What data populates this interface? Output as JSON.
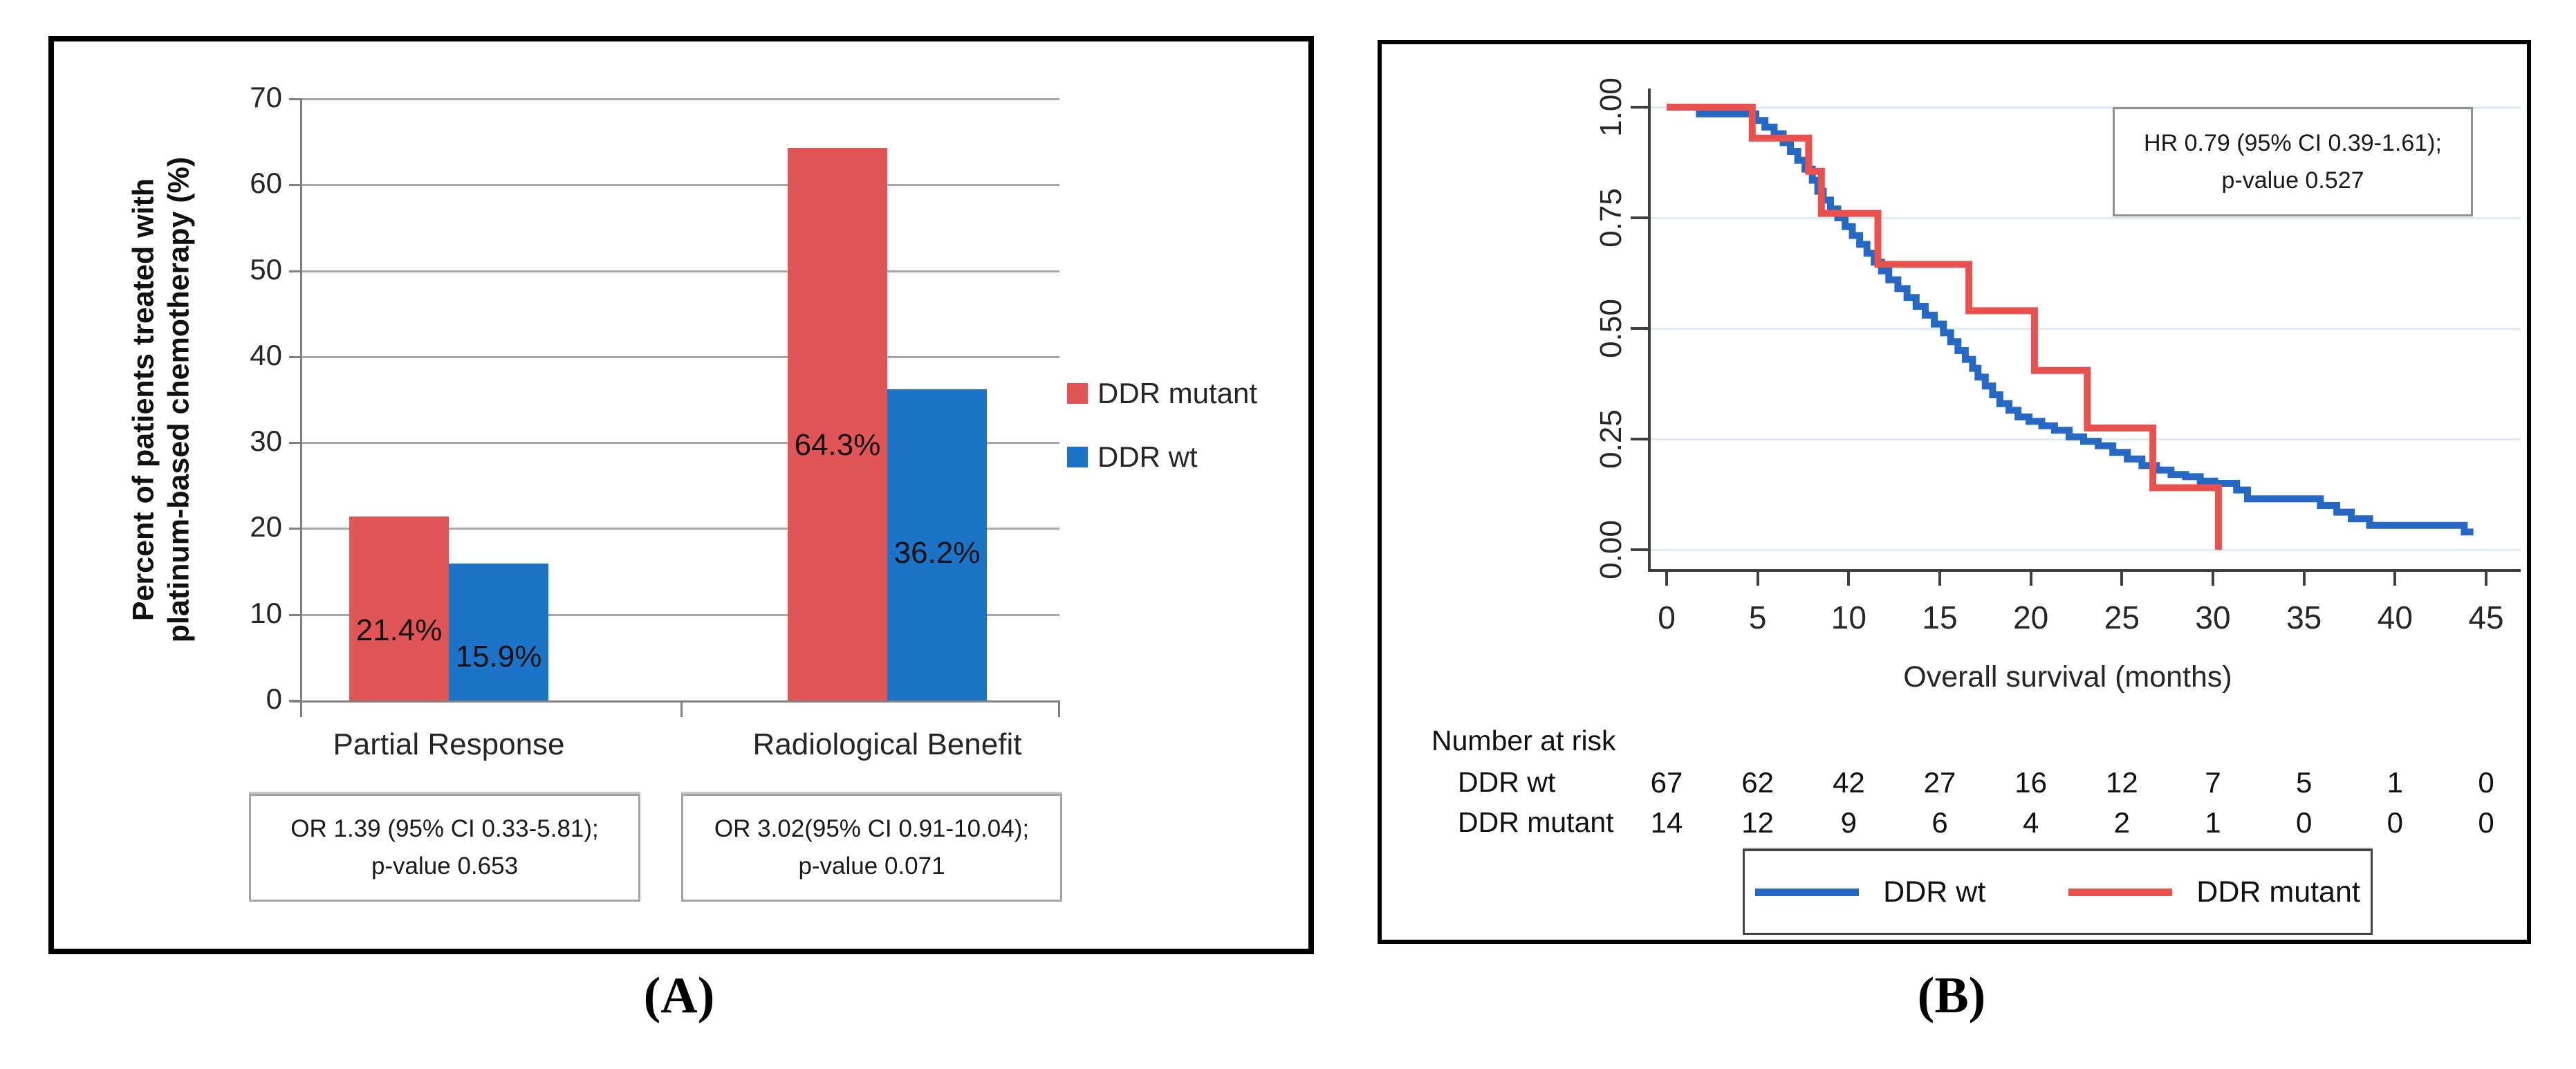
{
  "panel_a": {
    "caption": "(A)",
    "y_axis_title_line1": "Percent of patients treated with",
    "y_axis_title_line2": "platinum-based chemotherapy (%)",
    "y_ticks": [
      0,
      10,
      20,
      30,
      40,
      50,
      60,
      70
    ],
    "groups": [
      {
        "label": "Partial Response",
        "or_note_line1": "OR 1.39 (95% CI 0.33-5.81);",
        "or_note_line2": "p-value 0.653",
        "bars": [
          {
            "series": "DDR mutant",
            "value": 21.4,
            "label": "21.4%"
          },
          {
            "series": "DDR wt",
            "value": 15.9,
            "label": "15.9%"
          }
        ]
      },
      {
        "label": "Radiological Benefit",
        "or_note_line1": "OR 3.02(95% CI 0.91-10.04);",
        "or_note_line2": "p-value 0.071",
        "bars": [
          {
            "series": "DDR mutant",
            "value": 64.3,
            "label": "64.3%"
          },
          {
            "series": "DDR wt",
            "value": 36.2,
            "label": "36.2%"
          }
        ]
      }
    ],
    "legend": [
      {
        "label": "DDR mutant",
        "color": "#e25556"
      },
      {
        "label": "DDR wt",
        "color": "#1b74c8"
      }
    ]
  },
  "panel_b": {
    "caption": "(B)",
    "hr_note_line1": "HR 0.79 (95% CI 0.39-1.61);",
    "hr_note_line2": "p-value 0.527",
    "x_axis_title": "Overall survival (months)",
    "x_ticks": [
      0,
      5,
      10,
      15,
      20,
      25,
      30,
      35,
      40,
      45
    ],
    "y_ticks": [
      "1.00",
      "0.75",
      "0.50",
      "0.25",
      "0.00"
    ],
    "risk_table": {
      "title": "Number at risk",
      "rows": [
        {
          "label": "DDR wt",
          "counts": [
            67,
            62,
            42,
            27,
            16,
            12,
            7,
            5,
            1,
            0
          ]
        },
        {
          "label": "DDR mutant",
          "counts": [
            14,
            12,
            9,
            6,
            4,
            2,
            1,
            0,
            0,
            0
          ]
        }
      ]
    },
    "legend": [
      {
        "label": "DDR wt",
        "color": "#2569c5"
      },
      {
        "label": "DDR mutant",
        "color": "#e8514d"
      }
    ]
  },
  "chart_data": [
    {
      "type": "bar",
      "panel": "A",
      "title": "",
      "categories": [
        "Partial Response",
        "Radiological Benefit"
      ],
      "series": [
        {
          "name": "DDR mutant",
          "values": [
            21.4,
            64.3
          ],
          "color": "#e25556"
        },
        {
          "name": "DDR wt",
          "values": [
            15.9,
            36.2
          ],
          "color": "#1b74c8"
        }
      ],
      "xlabel": "",
      "ylabel": "Percent of patients treated with platinum-based chemotherapy (%)",
      "ylim": [
        0,
        70
      ],
      "grid": true,
      "legend_position": "right",
      "annotations": [
        "OR 1.39 (95% CI 0.33-5.81); p-value 0.653",
        "OR 3.02(95% CI 0.91-10.04); p-value 0.071"
      ]
    },
    {
      "type": "line",
      "panel": "B",
      "subtype": "kaplan-meier-step",
      "xlabel": "Overall survival (months)",
      "ylabel": "",
      "xlim": [
        0,
        45
      ],
      "ylim": [
        0.0,
        1.0
      ],
      "x_ticks": [
        0,
        5,
        10,
        15,
        20,
        25,
        30,
        35,
        40,
        45
      ],
      "y_ticks": [
        1.0,
        0.75,
        0.5,
        0.25,
        0.0
      ],
      "grid": true,
      "annotation": "HR 0.79 (95% CI 0.39-1.61); p-value 0.527",
      "series": [
        {
          "name": "DDR wt",
          "color": "#2569c5",
          "end_time": 44.3,
          "steps": [
            [
              0,
              1.0
            ],
            [
              1.8,
              0.985
            ],
            [
              4.9,
              0.97
            ],
            [
              5.4,
              0.955
            ],
            [
              5.9,
              0.94
            ],
            [
              6.4,
              0.92
            ],
            [
              6.8,
              0.9
            ],
            [
              7.2,
              0.88
            ],
            [
              7.6,
              0.86
            ],
            [
              8.0,
              0.835
            ],
            [
              8.3,
              0.81
            ],
            [
              8.6,
              0.79
            ],
            [
              9.0,
              0.77
            ],
            [
              9.4,
              0.75
            ],
            [
              9.8,
              0.73
            ],
            [
              10.2,
              0.71
            ],
            [
              10.6,
              0.69
            ],
            [
              11.0,
              0.67
            ],
            [
              11.4,
              0.65
            ],
            [
              11.8,
              0.63
            ],
            [
              12.2,
              0.61
            ],
            [
              12.7,
              0.59
            ],
            [
              13.2,
              0.57
            ],
            [
              13.7,
              0.55
            ],
            [
              14.2,
              0.53
            ],
            [
              14.7,
              0.51
            ],
            [
              15.2,
              0.49
            ],
            [
              15.6,
              0.47
            ],
            [
              16.0,
              0.45
            ],
            [
              16.4,
              0.43
            ],
            [
              16.8,
              0.41
            ],
            [
              17.1,
              0.39
            ],
            [
              17.5,
              0.37
            ],
            [
              17.9,
              0.35
            ],
            [
              18.3,
              0.33
            ],
            [
              18.8,
              0.315
            ],
            [
              19.3,
              0.3
            ],
            [
              19.9,
              0.29
            ],
            [
              20.6,
              0.28
            ],
            [
              21.3,
              0.27
            ],
            [
              22.1,
              0.255
            ],
            [
              22.9,
              0.245
            ],
            [
              23.7,
              0.235
            ],
            [
              24.5,
              0.22
            ],
            [
              25.3,
              0.205
            ],
            [
              26.1,
              0.19
            ],
            [
              26.9,
              0.18
            ],
            [
              27.7,
              0.17
            ],
            [
              28.5,
              0.165
            ],
            [
              29.3,
              0.155
            ],
            [
              30.1,
              0.15
            ],
            [
              31.3,
              0.135
            ],
            [
              31.9,
              0.115
            ],
            [
              35.9,
              0.1
            ],
            [
              36.8,
              0.085
            ],
            [
              37.6,
              0.07
            ],
            [
              38.6,
              0.055
            ],
            [
              43.8,
              0.04
            ]
          ]
        },
        {
          "name": "DDR mutant",
          "color": "#e8514d",
          "end_time": 30.3,
          "steps": [
            [
              0,
              1.0
            ],
            [
              4.7,
              0.93
            ],
            [
              7.8,
              0.855
            ],
            [
              8.5,
              0.76
            ],
            [
              11.6,
              0.645
            ],
            [
              16.6,
              0.54
            ],
            [
              20.2,
              0.405
            ],
            [
              23.1,
              0.275
            ],
            [
              26.7,
              0.14
            ],
            [
              30.3,
              0.0
            ]
          ]
        }
      ],
      "number_at_risk": {
        "times": [
          0,
          5,
          10,
          15,
          20,
          25,
          30,
          35,
          40,
          45
        ],
        "DDR wt": [
          67,
          62,
          42,
          27,
          16,
          12,
          7,
          5,
          1,
          0
        ],
        "DDR mutant": [
          14,
          12,
          9,
          6,
          4,
          2,
          1,
          0,
          0,
          0
        ]
      }
    }
  ]
}
